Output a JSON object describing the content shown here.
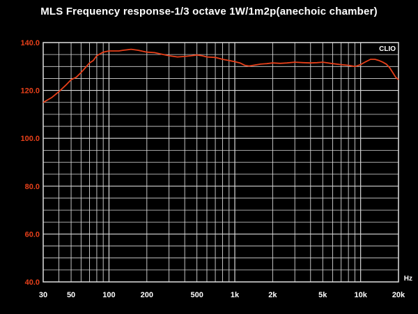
{
  "colors": {
    "background": "#000000",
    "grid": "#d8d8d8",
    "frame": "#e0e0e0",
    "curve": "#e8401a",
    "y_tick_text": "#e8401a",
    "x_tick_text": "#ffffff",
    "title_text": "#ffffff"
  },
  "chart_data": {
    "type": "line",
    "title": "MLS Frequency response-1/3 octave 1W/1m2p(anechoic chamber)",
    "brand_label": "CLIO",
    "x_unit": "Hz",
    "x_scale": "log",
    "xlim": [
      30,
      20000
    ],
    "ylim": [
      40,
      140
    ],
    "grid": true,
    "x_ticks": [
      30,
      50,
      100,
      200,
      500,
      1000,
      2000,
      5000,
      10000,
      20000
    ],
    "x_tick_labels": [
      "30",
      "50",
      "100",
      "200",
      "500",
      "1k",
      "2k",
      "5k",
      "10k",
      "20k"
    ],
    "y_ticks": [
      40,
      60,
      80,
      100,
      120,
      140
    ],
    "y_tick_labels": [
      "40.0",
      "60.0",
      "80.0",
      "100.0",
      "120.0",
      "140.0"
    ],
    "series": [
      {
        "x": [
          30,
          35,
          40,
          45,
          50,
          55,
          60,
          65,
          70,
          75,
          80,
          90,
          100,
          110,
          120,
          130,
          140,
          150,
          170,
          200,
          230,
          260,
          300,
          350,
          400,
          450,
          500,
          550,
          600,
          700,
          800,
          900,
          1000,
          1100,
          1200,
          1300,
          1400,
          1600,
          1800,
          2000,
          2300,
          2600,
          3000,
          3500,
          4000,
          4500,
          5000,
          6000,
          7000,
          8000,
          9000,
          10000,
          11000,
          12000,
          13000,
          14000,
          15000,
          16000,
          17000,
          18000,
          19000,
          20000
        ],
        "y": [
          115,
          117,
          119.5,
          122,
          124.5,
          125.5,
          127.5,
          129.5,
          131.5,
          132.5,
          134.5,
          136,
          136.5,
          136.5,
          136.5,
          136.8,
          137,
          137.2,
          136.8,
          136,
          135.8,
          135.2,
          134.5,
          134,
          134.2,
          134.5,
          134.8,
          134.5,
          134,
          133.8,
          133,
          132.5,
          132,
          131.5,
          130.5,
          130.2,
          130.5,
          131,
          131.2,
          131.5,
          131.3,
          131.5,
          131.8,
          131.6,
          131.5,
          131.6,
          131.8,
          131.2,
          130.8,
          130.5,
          130,
          130.8,
          132,
          133,
          133,
          132.5,
          131.8,
          131,
          129.5,
          127.5,
          125.5,
          124.5
        ]
      }
    ]
  }
}
